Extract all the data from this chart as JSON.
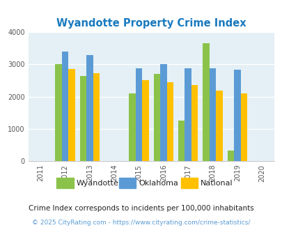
{
  "title": "Wyandotte Property Crime Index",
  "title_color": "#1a7abf",
  "all_years": [
    2011,
    2012,
    2013,
    2014,
    2015,
    2016,
    2017,
    2018,
    2019,
    2020
  ],
  "data_years": [
    2012,
    2013,
    2015,
    2016,
    2017,
    2018,
    2019
  ],
  "wyandotte": [
    3000,
    2650,
    2100,
    2700,
    1250,
    3650,
    330
  ],
  "oklahoma": [
    3400,
    3280,
    2880,
    3000,
    2880,
    2880,
    2830
  ],
  "national": [
    2850,
    2720,
    2500,
    2450,
    2370,
    2180,
    2090
  ],
  "wyandotte_color": "#8bc34a",
  "oklahoma_color": "#5b9bd5",
  "national_color": "#ffc000",
  "background_color": "#e4f0f5",
  "ylim": [
    0,
    4000
  ],
  "yticks": [
    0,
    1000,
    2000,
    3000,
    4000
  ],
  "bar_width": 0.27,
  "legend_labels": [
    "Wyandotte",
    "Oklahoma",
    "National"
  ],
  "footnote1": "Crime Index corresponds to incidents per 100,000 inhabitants",
  "footnote2": "© 2025 CityRating.com - https://www.cityrating.com/crime-statistics/",
  "footnote1_color": "#222222",
  "footnote2_color": "#5b9bd5"
}
